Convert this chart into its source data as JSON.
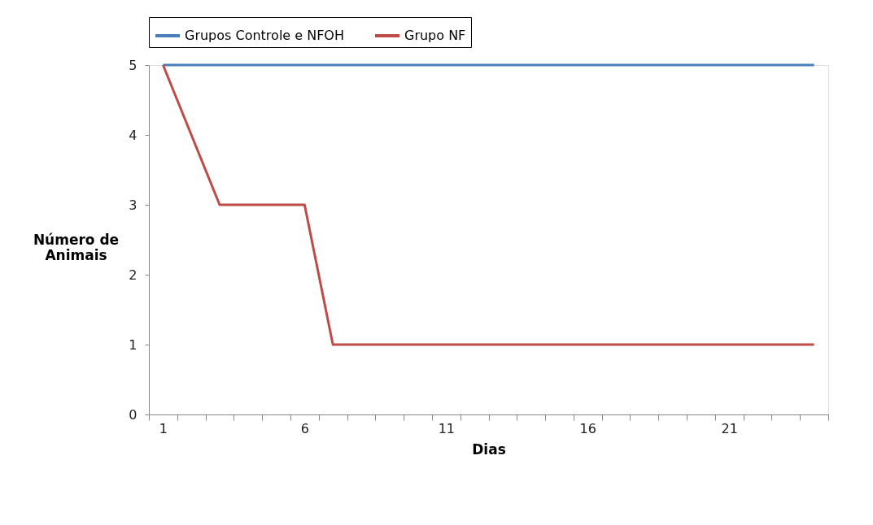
{
  "chart_data": {
    "type": "line",
    "xlabel": "Dias",
    "ylabel": "Número de\nAnimais",
    "categories": [
      "1",
      null,
      null,
      null,
      null,
      "6",
      null,
      null,
      null,
      null,
      "11",
      null,
      null,
      null,
      null,
      "16",
      null,
      null,
      null,
      null,
      "21",
      null,
      null,
      null
    ],
    "series": [
      {
        "name": "Grupos Controle e NFOH",
        "color": "#4a7ebb",
        "values": [
          5,
          5,
          5,
          5,
          5,
          5,
          5,
          5,
          5,
          5,
          5,
          5,
          5,
          5,
          5,
          5,
          5,
          5,
          5,
          5,
          5,
          5,
          5,
          5
        ]
      },
      {
        "name": "Grupo NF",
        "color": "#be4b48",
        "values": [
          5,
          4,
          3,
          3,
          3,
          3,
          1,
          1,
          1,
          1,
          1,
          1,
          1,
          1,
          1,
          1,
          1,
          1,
          1,
          1,
          1,
          1,
          1,
          1
        ]
      }
    ],
    "ylim": [
      0,
      5
    ],
    "yticks": [
      0,
      1,
      2,
      3,
      4,
      5
    ],
    "grid": false,
    "legend": "top",
    "marker": "none",
    "line_style": "solid"
  }
}
